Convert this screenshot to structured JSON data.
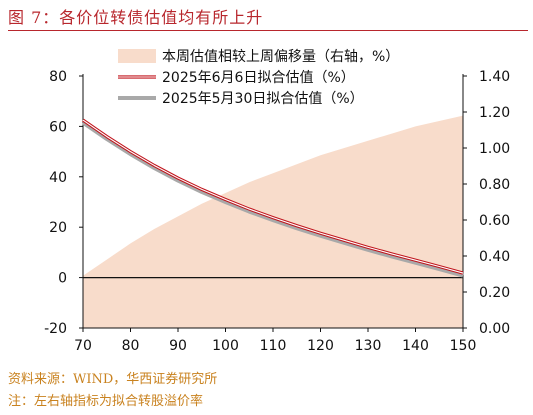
{
  "header": {
    "title": "图 7：各价位转债估值均有所上升"
  },
  "footer": {
    "source": "资料来源：WIND，华西证券研究所",
    "note": "注：左右轴指标为拟合转股溢价率"
  },
  "colors": {
    "area": "#f8dccb",
    "line_jun": "#c0141c",
    "line_may": "#a9a9a9",
    "title": "#b8272d",
    "footer": "#c9821f"
  },
  "chart_data": {
    "type": "line",
    "x": [
      70,
      75,
      80,
      85,
      90,
      95,
      100,
      105,
      110,
      115,
      120,
      125,
      130,
      135,
      140,
      145,
      150
    ],
    "xlim": [
      70,
      150
    ],
    "ylim_left": [
      -20,
      80
    ],
    "ylim_right": [
      0.0,
      1.4
    ],
    "x_ticks": [
      "70",
      "80",
      "90",
      "100",
      "110",
      "120",
      "130",
      "140",
      "150"
    ],
    "y_left_ticks": [
      "-20",
      "0",
      "20",
      "40",
      "60",
      "80"
    ],
    "y_right_ticks": [
      "0.00",
      "0.20",
      "0.40",
      "0.60",
      "0.80",
      "1.00",
      "1.20",
      "1.40"
    ],
    "legend_position": "top",
    "series": [
      {
        "name": "本周估值相较上周偏移量（右轴，%）",
        "type": "area",
        "axis": "right",
        "values": [
          0.29,
          0.38,
          0.47,
          0.55,
          0.62,
          0.69,
          0.75,
          0.81,
          0.86,
          0.91,
          0.96,
          1.0,
          1.04,
          1.08,
          1.12,
          1.15,
          1.18
        ]
      },
      {
        "name": "2025年6月6日拟合估值（%）",
        "type": "line",
        "axis": "left",
        "values": [
          62.5,
          56.0,
          50.0,
          44.5,
          39.5,
          35.0,
          31.0,
          27.2,
          23.8,
          20.6,
          17.6,
          14.8,
          12.0,
          9.4,
          6.9,
          4.4,
          1.8
        ]
      },
      {
        "name": "2025年5月30日拟合估值（%）",
        "type": "line",
        "axis": "left",
        "values": [
          61.5,
          55.0,
          49.0,
          43.5,
          38.5,
          34.0,
          30.0,
          26.2,
          22.8,
          19.6,
          16.6,
          13.8,
          11.0,
          8.4,
          5.9,
          3.4,
          0.8
        ]
      }
    ]
  }
}
